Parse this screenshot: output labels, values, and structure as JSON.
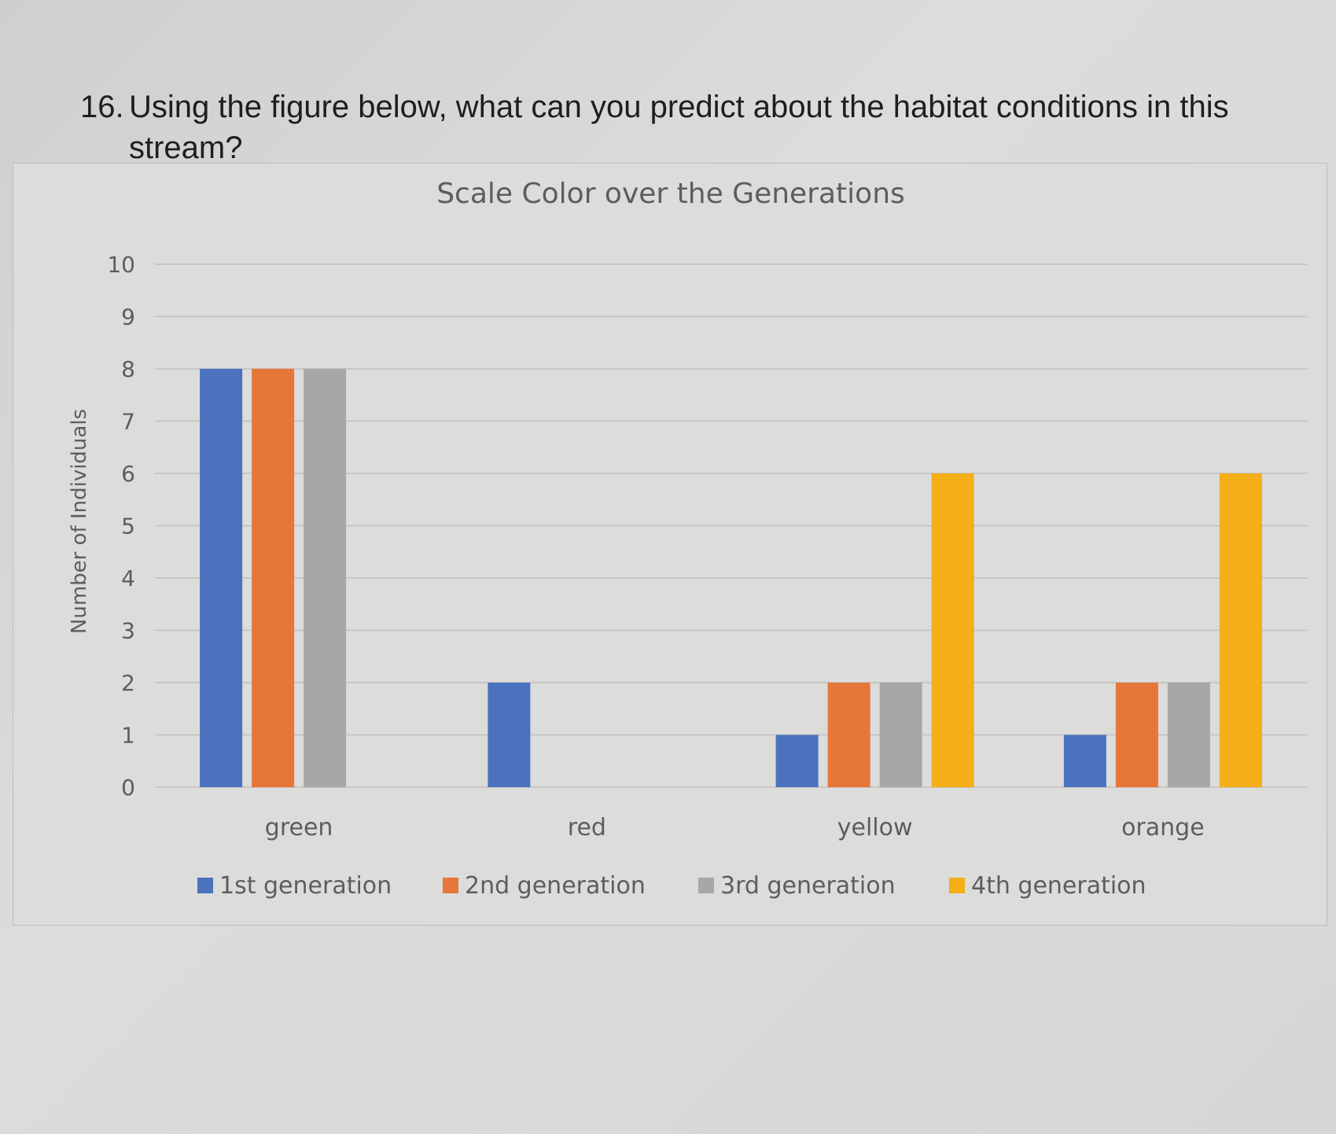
{
  "question": {
    "number": "16.",
    "line1": "Using the figure below, what can you predict about the habitat conditions in this",
    "line2": "stream?"
  },
  "chart_data": {
    "type": "bar",
    "title": "Scale Color over the Generations",
    "xlabel": "",
    "ylabel": "Number of Individuals",
    "ylim": [
      0,
      10
    ],
    "yticks": [
      0,
      1,
      2,
      3,
      4,
      5,
      6,
      7,
      8,
      9,
      10
    ],
    "grid": true,
    "legend_position": "bottom",
    "categories": [
      "green",
      "red",
      "yellow",
      "orange"
    ],
    "series": [
      {
        "name": "1st generation",
        "color": "#4a72bd",
        "values": [
          8,
          2,
          1,
          1
        ]
      },
      {
        "name": "2nd generation",
        "color": "#e5773a",
        "values": [
          8,
          0,
          2,
          2
        ]
      },
      {
        "name": "3rd generation",
        "color": "#a7a7a9",
        "values": [
          8,
          0,
          2,
          2
        ]
      },
      {
        "name": "4th generation",
        "color": "#f3ae18",
        "values": [
          0,
          0,
          6,
          6
        ]
      }
    ]
  }
}
